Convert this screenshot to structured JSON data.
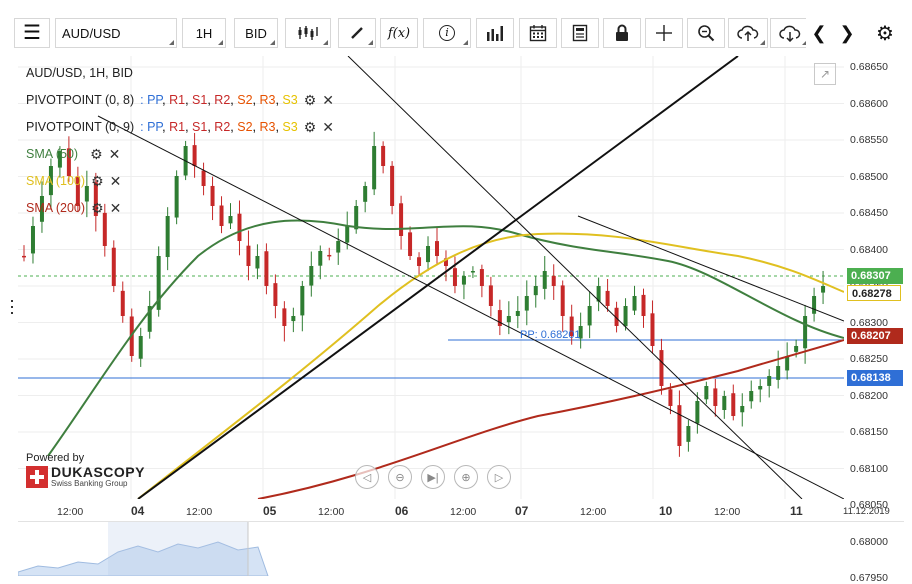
{
  "toolbar": {
    "symbol": "AUD/USD",
    "timeframe": "1H",
    "side": "BID",
    "buttons": [
      "menu-icon",
      "candle-type-icon",
      "draw-icon",
      "fx-icon",
      "info-icon",
      "volume-icon",
      "calendar-icon",
      "report-icon",
      "lock-icon",
      "crosshair-icon",
      "zoom-icon",
      "upload-icon",
      "download-icon",
      "prev-icon",
      "next-icon",
      "settings-icon"
    ]
  },
  "legend": {
    "instrument": "AUD/USD, 1H, BID",
    "pivot1_name": "PIVOTPOINT (0, 8)",
    "pivot2_name": "PIVOTPOINT (0, 9)",
    "pivot_parts": [
      {
        "label": "PP",
        "color": "#2f6fd6"
      },
      {
        "label": "R1",
        "color": "#c62828"
      },
      {
        "label": "S1",
        "color": "#c62828"
      },
      {
        "label": "R2",
        "color": "#c62828"
      },
      {
        "label": "S2",
        "color": "#e65100"
      },
      {
        "label": "R3",
        "color": "#e65100"
      },
      {
        "label": "S3",
        "color": "#e6c200"
      }
    ],
    "sma50": "SMA (50)",
    "sma100": "SMA (100)",
    "sma200": "SMA (200)",
    "sma50_color": "#3f7f3f",
    "sma100_color": "#e0c020",
    "sma200_color": "#b02a1c"
  },
  "pp_label": "PP: 0.68201",
  "price_axis": {
    "ticks": [
      "0.68650",
      "0.68600",
      "0.68550",
      "0.68500",
      "0.68450",
      "0.68400",
      "0.68350",
      "0.68300",
      "0.68250",
      "0.68200",
      "0.68150",
      "0.68100",
      "0.68050",
      "0.68000",
      "0.67950"
    ],
    "current": "0.68307",
    "sma100_value": "0.68278",
    "sma200_value": "0.68207",
    "line_value": "0.68138",
    "current_color": "#4caf50",
    "sma200_label_color": "#b02a1c",
    "blue_color": "#2f6fd6"
  },
  "time_axis": {
    "labels": [
      "12:00",
      "04",
      "12:00",
      "05",
      "12:00",
      "06",
      "12:00",
      "07",
      "12:00",
      "10",
      "12:00",
      "11",
      "11.12.2019"
    ]
  },
  "branding": {
    "powered_by": "Powered by",
    "name": "DUKASCOPY",
    "tagline": "Swiss Banking Group"
  }
}
